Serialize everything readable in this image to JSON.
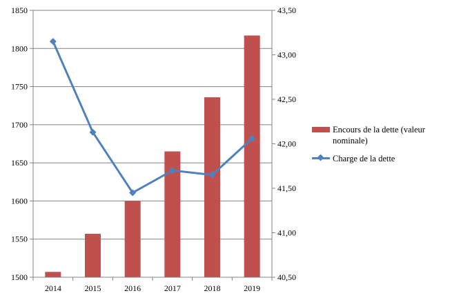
{
  "colors": {
    "bar": "#c0504d",
    "line": "#4f81bd",
    "axis": "#808080",
    "grid": "#808080"
  },
  "chart_data": {
    "type": "bar",
    "categories": [
      "2014",
      "2015",
      "2016",
      "2017",
      "2018",
      "2019"
    ],
    "series": [
      {
        "name": "Encours de la dette (valeur nominale)",
        "type": "bar",
        "axis": "left",
        "values": [
          1507,
          1557,
          1600,
          1665,
          1736,
          1817
        ]
      },
      {
        "name": "Charge de la dette",
        "type": "line",
        "axis": "right",
        "marker": "diamond",
        "values": [
          43.15,
          42.13,
          41.45,
          41.7,
          41.65,
          42.06
        ]
      }
    ],
    "left_axis": {
      "ylim": [
        1500,
        1850
      ],
      "ticks": [
        "1500",
        "1550",
        "1600",
        "1650",
        "1700",
        "1750",
        "1800",
        "1850"
      ]
    },
    "right_axis": {
      "ylim": [
        40.5,
        43.5
      ],
      "ticks": [
        "40,50",
        "41,00",
        "41,50",
        "42,00",
        "42,50",
        "43,00",
        "43,50"
      ]
    },
    "grid": true,
    "legend_position": "right"
  }
}
